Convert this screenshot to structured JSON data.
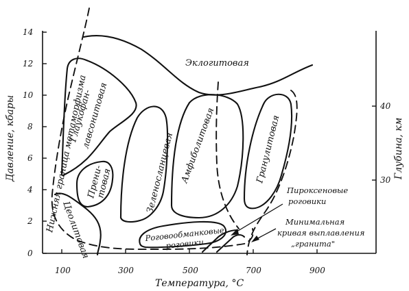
{
  "axes": {
    "x_label": "Температура, °С",
    "y_left_label": "Давление, кбары",
    "y_right_label": "Глубина, км",
    "x_ticks": [
      "100",
      "300",
      "500",
      "700",
      "900"
    ],
    "y_left_ticks": [
      "0",
      "2",
      "4",
      "6",
      "8",
      "10",
      "12",
      "14"
    ],
    "y_right_ticks": [
      "30",
      "40"
    ]
  },
  "facies": {
    "eclogite": "Эклогитовая",
    "glaucophane_1": "Глаукофан-",
    "glaucophane_2": "лавсонитовая",
    "prehnite_1": "Прени-",
    "prehnite_2": "товая",
    "greenschist": "Зеленосланцевая",
    "amphibolite": "Амфиболитовая",
    "granulite": "Гранулитовая",
    "zeolite": "Цеолитовая",
    "hornblende_1": "Роговообманковые",
    "hornblende_2": "роговики"
  },
  "annotations": {
    "lower_boundary": "Нижняя граница метаморфизма",
    "pyroxene_1": "Пироксеновые",
    "pyroxene_2": "роговики",
    "granite_1": "Минимальная",
    "granite_2": "кривая выплавления",
    "granite_3": "„гранита\""
  }
}
